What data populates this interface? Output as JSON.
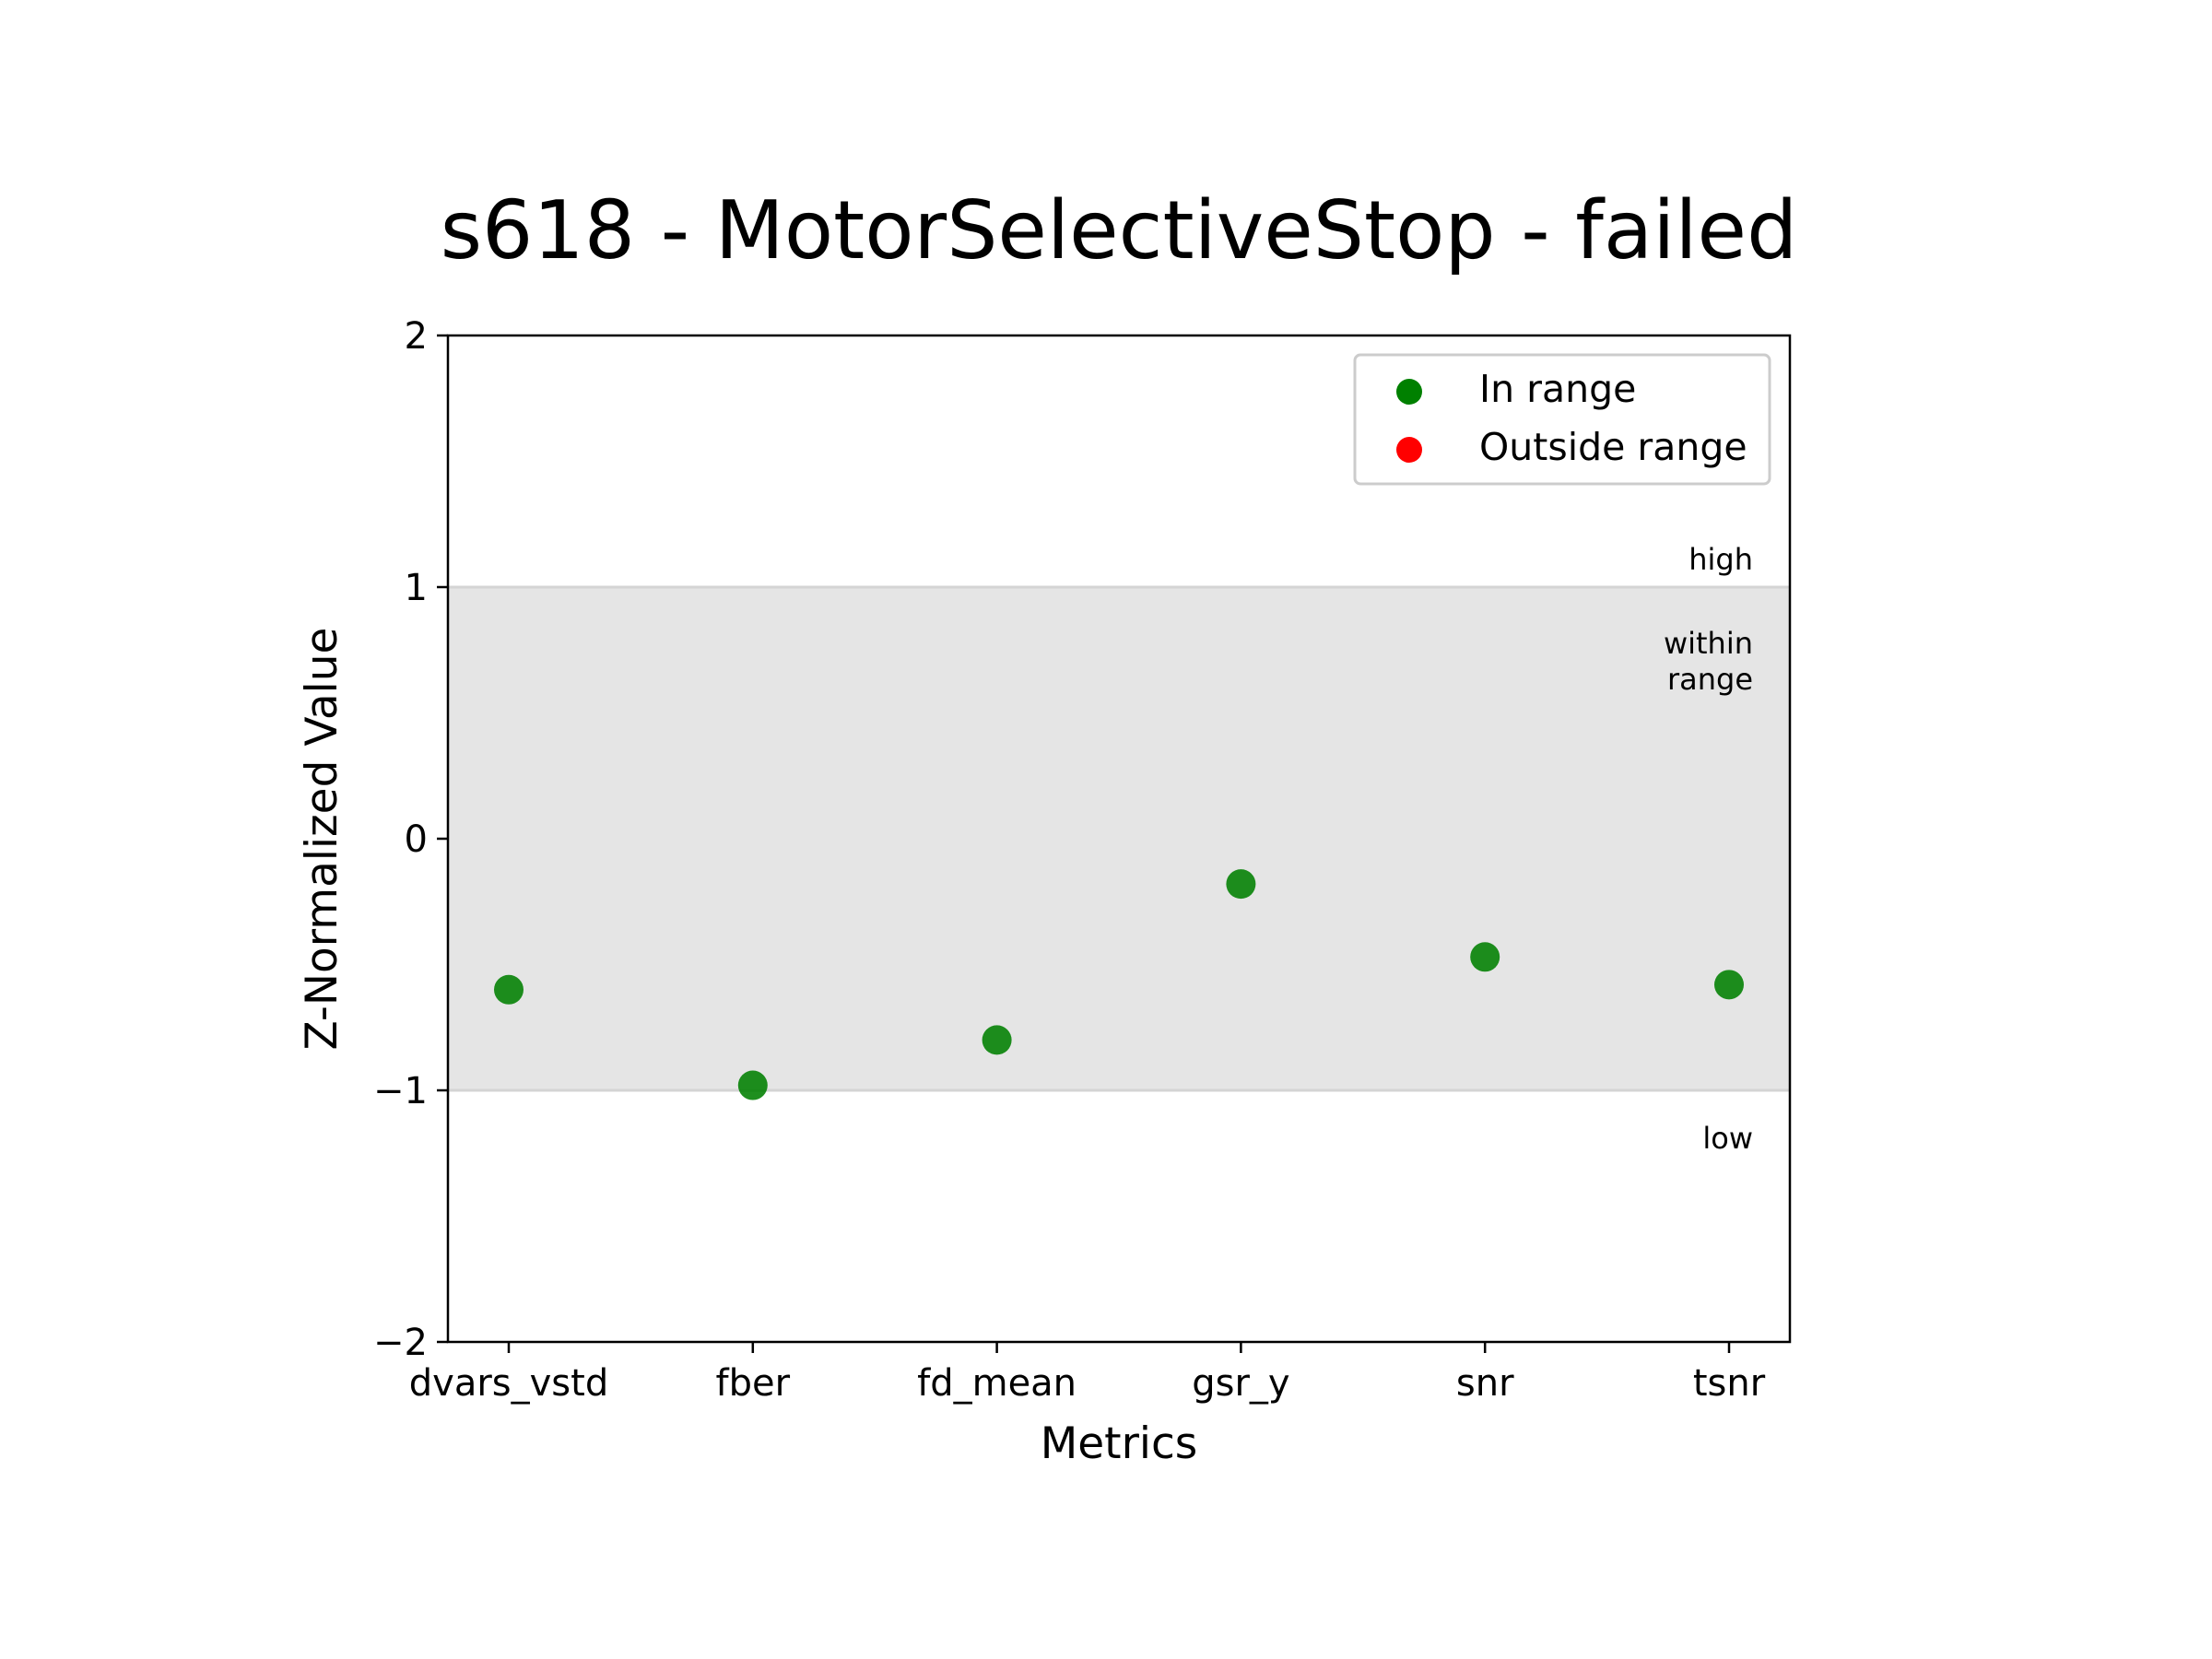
{
  "chart_data": {
    "type": "scatter",
    "title": "s618 - MotorSelectiveStop - failed",
    "xlabel": "Metrics",
    "ylabel": "Z-Normalized Value",
    "categories": [
      "dvars_vstd",
      "fber",
      "fd_mean",
      "gsr_y",
      "snr",
      "tsnr"
    ],
    "series": [
      {
        "name": "In range",
        "color": "#008000",
        "values": [
          -0.6,
          -0.98,
          -0.8,
          -0.18,
          -0.47,
          -0.58
        ]
      },
      {
        "name": "Outside range",
        "color": "#ff0000",
        "values": []
      }
    ],
    "ylim": [
      -2,
      2
    ],
    "yticks": [
      2,
      1,
      0,
      -1,
      -2
    ],
    "ytick_labels": [
      "2",
      "1",
      "0",
      "−1",
      "−2"
    ],
    "range_band": {
      "low": -1,
      "high": 1,
      "color": "#e5e5e5"
    },
    "band_labels": {
      "high": "high",
      "within_1": "within",
      "within_2": "range",
      "low": "low"
    },
    "grid": false,
    "legend_position": "top-right"
  }
}
